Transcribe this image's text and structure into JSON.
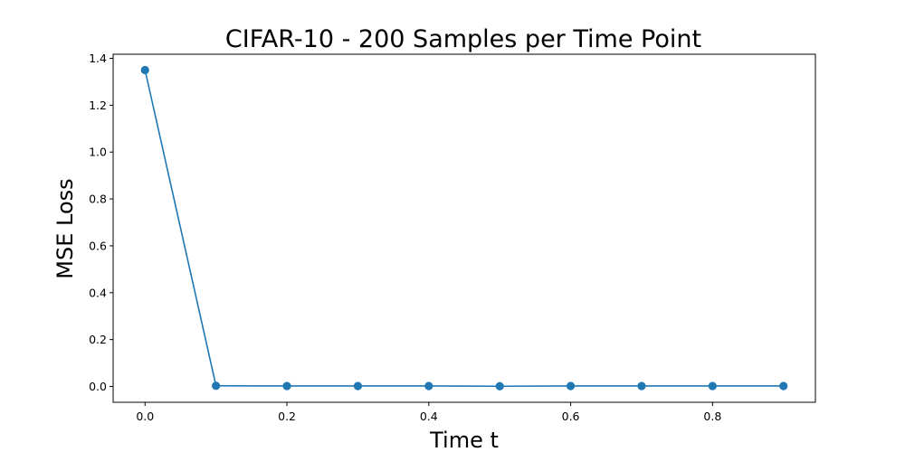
{
  "chart_data": {
    "type": "line",
    "title": "CIFAR-10 - 200 Samples per Time Point",
    "xlabel": "Time t",
    "ylabel": "MSE Loss",
    "x": [
      0.0,
      0.1,
      0.2,
      0.3,
      0.4,
      0.5,
      0.6,
      0.7,
      0.8,
      0.9
    ],
    "series": [
      {
        "values": [
          1.35,
          0.003,
          0.002,
          0.002,
          0.002,
          0.001,
          0.002,
          0.002,
          0.002,
          0.002
        ],
        "color": "#1f77b4"
      }
    ],
    "xlim": [
      -0.045,
      0.945
    ],
    "ylim": [
      -0.0675,
      1.4175
    ],
    "xticks": [
      0.0,
      0.2,
      0.4,
      0.6,
      0.8
    ],
    "xtick_labels": [
      "0.0",
      "0.2",
      "0.4",
      "0.6",
      "0.8"
    ],
    "yticks": [
      0.0,
      0.2,
      0.4,
      0.6,
      0.8,
      1.0,
      1.2,
      1.4
    ],
    "ytick_labels": [
      "0.0",
      "0.2",
      "0.4",
      "0.6",
      "0.8",
      "1.0",
      "1.2",
      "1.4"
    ],
    "grid": false,
    "legend": "none"
  }
}
